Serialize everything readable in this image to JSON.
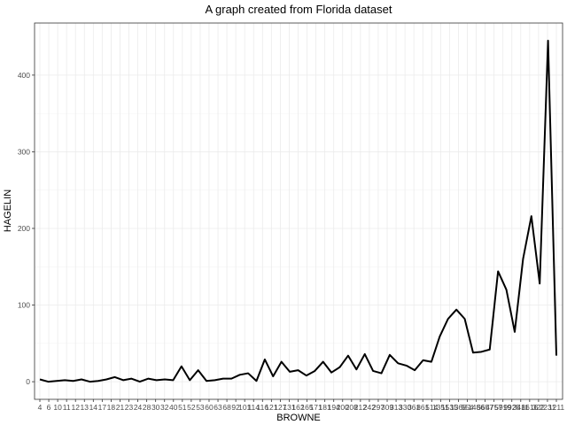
{
  "chart_data": {
    "type": "line",
    "title": "A graph created from Florida dataset",
    "xlabel": "BROWNE",
    "ylabel": "HAGELIN",
    "x": [
      4,
      6,
      10,
      11,
      11,
      12,
      13,
      14,
      17,
      17,
      18,
      21,
      23,
      24,
      28,
      30,
      32,
      32,
      40,
      51,
      52,
      53,
      60,
      63,
      68,
      92,
      101,
      114,
      116,
      121,
      127,
      127,
      131,
      162,
      165,
      171,
      181,
      194,
      200,
      208,
      212,
      242,
      297,
      309,
      313,
      330,
      361,
      861,
      514,
      1351,
      1535,
      1368,
      554,
      1486,
      5657,
      4757,
      5919,
      9925,
      3411,
      8616,
      322,
      2231,
      1211
    ],
    "y": [
      3,
      0,
      1,
      2,
      1,
      3,
      0,
      1,
      3,
      6,
      2,
      4,
      0,
      4,
      2,
      3,
      2,
      20,
      2,
      15,
      1,
      2,
      4,
      4,
      9,
      11,
      1,
      29,
      7,
      26,
      13,
      15,
      8,
      14,
      26,
      12,
      19,
      34,
      16,
      36,
      14,
      11,
      35,
      24,
      21,
      15,
      28,
      26,
      59,
      82,
      94,
      82,
      38,
      39,
      42,
      144,
      120,
      65,
      160,
      216,
      128,
      445,
      34
    ],
    "xtick_labels": [
      "4",
      "6",
      "10",
      "11",
      "12",
      "13",
      "14",
      "17",
      "18",
      "21",
      "23",
      "24",
      "28",
      "30",
      "32",
      "40",
      "51",
      "52",
      "53",
      "60",
      "63",
      "68",
      "92",
      "101",
      "114",
      "116",
      "121",
      "127",
      "131",
      "162",
      "165",
      "171",
      "181",
      "194",
      "200",
      "208",
      "212",
      "242",
      "297",
      "309",
      "313",
      "330",
      "361",
      "861",
      "514",
      "1351",
      "1535",
      "1368",
      "554",
      "1486",
      "5657",
      "4757",
      "5919",
      "9925",
      "3411",
      "8616",
      "322",
      "2231",
      "1211"
    ],
    "yticks": [
      0,
      100,
      200,
      300,
      400
    ],
    "ylim": [
      -23,
      468
    ],
    "grid": true,
    "line_color": "#000000"
  }
}
